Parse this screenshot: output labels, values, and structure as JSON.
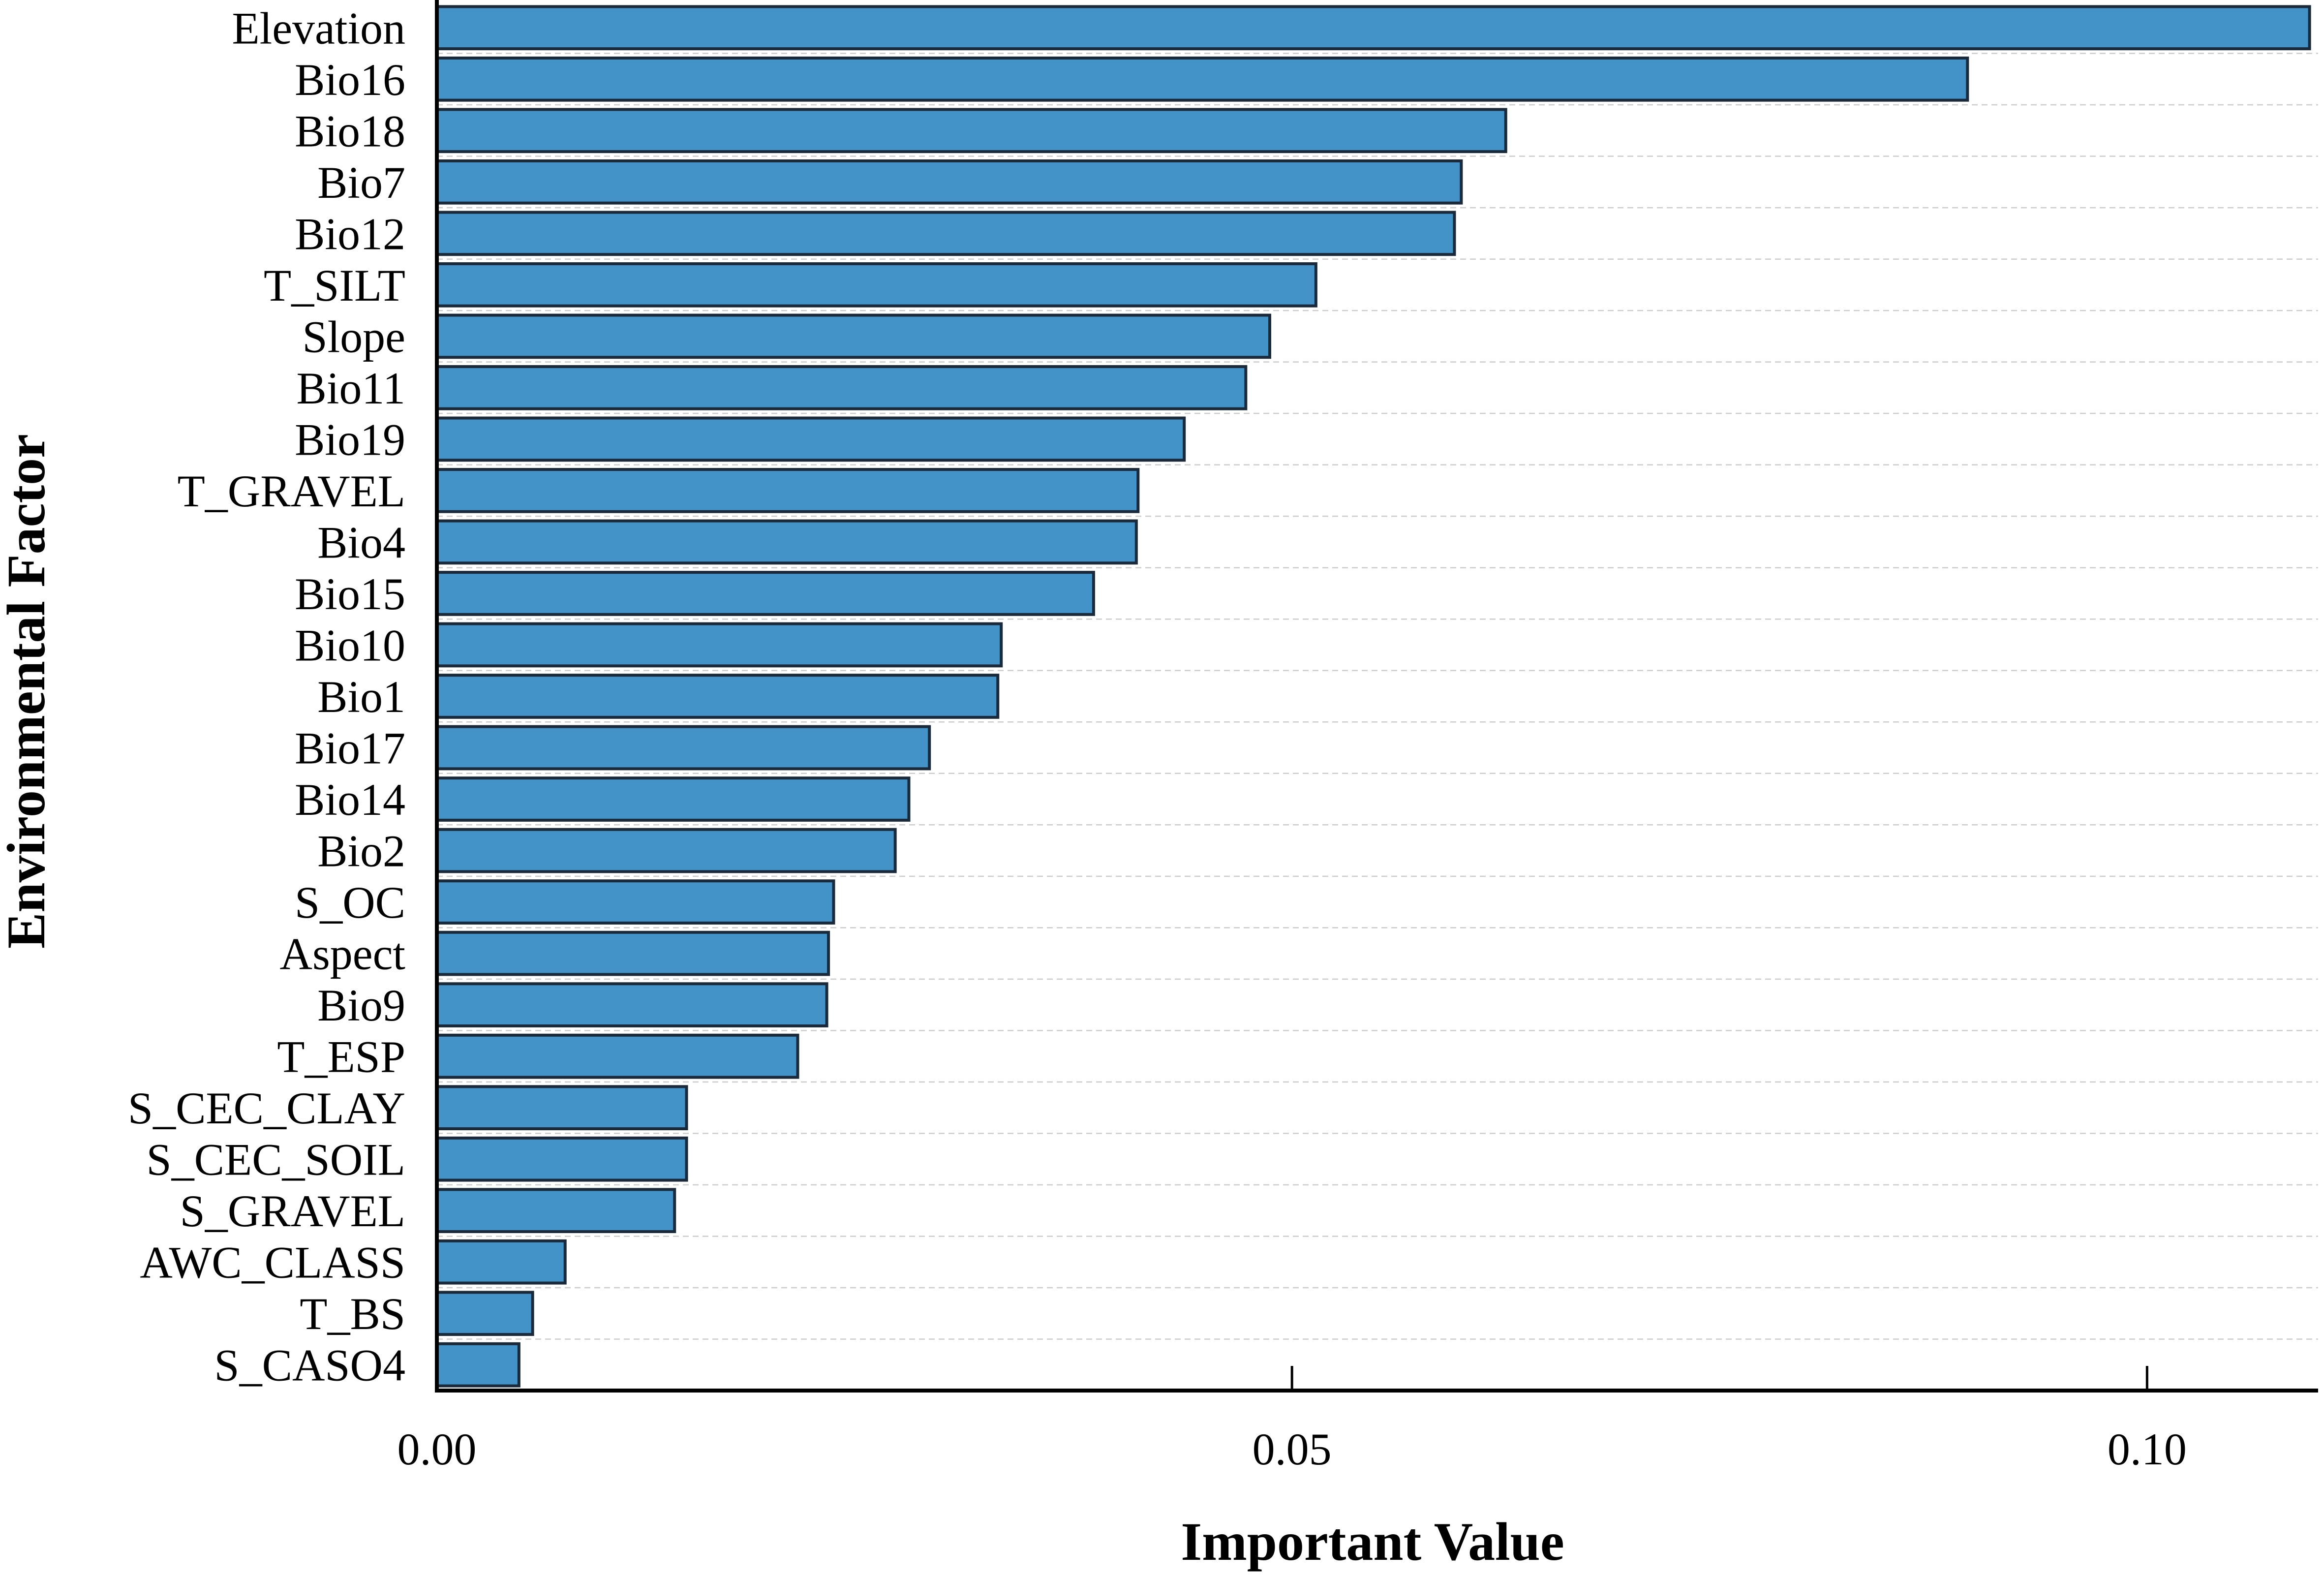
{
  "chart_data": {
    "type": "bar",
    "orientation": "horizontal",
    "title": "",
    "xlabel": "Important Value",
    "ylabel": "Environmental Factor",
    "xlim": [
      0,
      0.11
    ],
    "xticks": [
      0.0,
      0.05,
      0.1
    ],
    "xtick_labels": [
      "0.00",
      "0.05",
      "0.10"
    ],
    "grid": "horizontal dashed",
    "bar_color": "#4393c8",
    "bar_edge_color": "#1a2a3a",
    "categories": [
      "Elevation",
      "Bio16",
      "Bio18",
      "Bio7",
      "Bio12",
      "T_SILT",
      "Slope",
      "Bio11",
      "Bio19",
      "T_GRAVEL",
      "Bio4",
      "Bio15",
      "Bio10",
      "Bio1",
      "Bio17",
      "Bio14",
      "Bio2",
      "S_OC",
      "Aspect",
      "Bio9",
      "T_ESP",
      "S_CEC_CLAY",
      "S_CEC_SOIL",
      "S_GRAVEL",
      "AWC_CLASS",
      "T_BS",
      "S_CASO4"
    ],
    "values": [
      0.1095,
      0.0895,
      0.0625,
      0.0599,
      0.0595,
      0.0514,
      0.0487,
      0.0473,
      0.0437,
      0.041,
      0.0409,
      0.0384,
      0.033,
      0.0328,
      0.0288,
      0.0276,
      0.0268,
      0.0232,
      0.0229,
      0.0228,
      0.0211,
      0.0146,
      0.0146,
      0.0139,
      0.0075,
      0.0056,
      0.0048
    ]
  }
}
